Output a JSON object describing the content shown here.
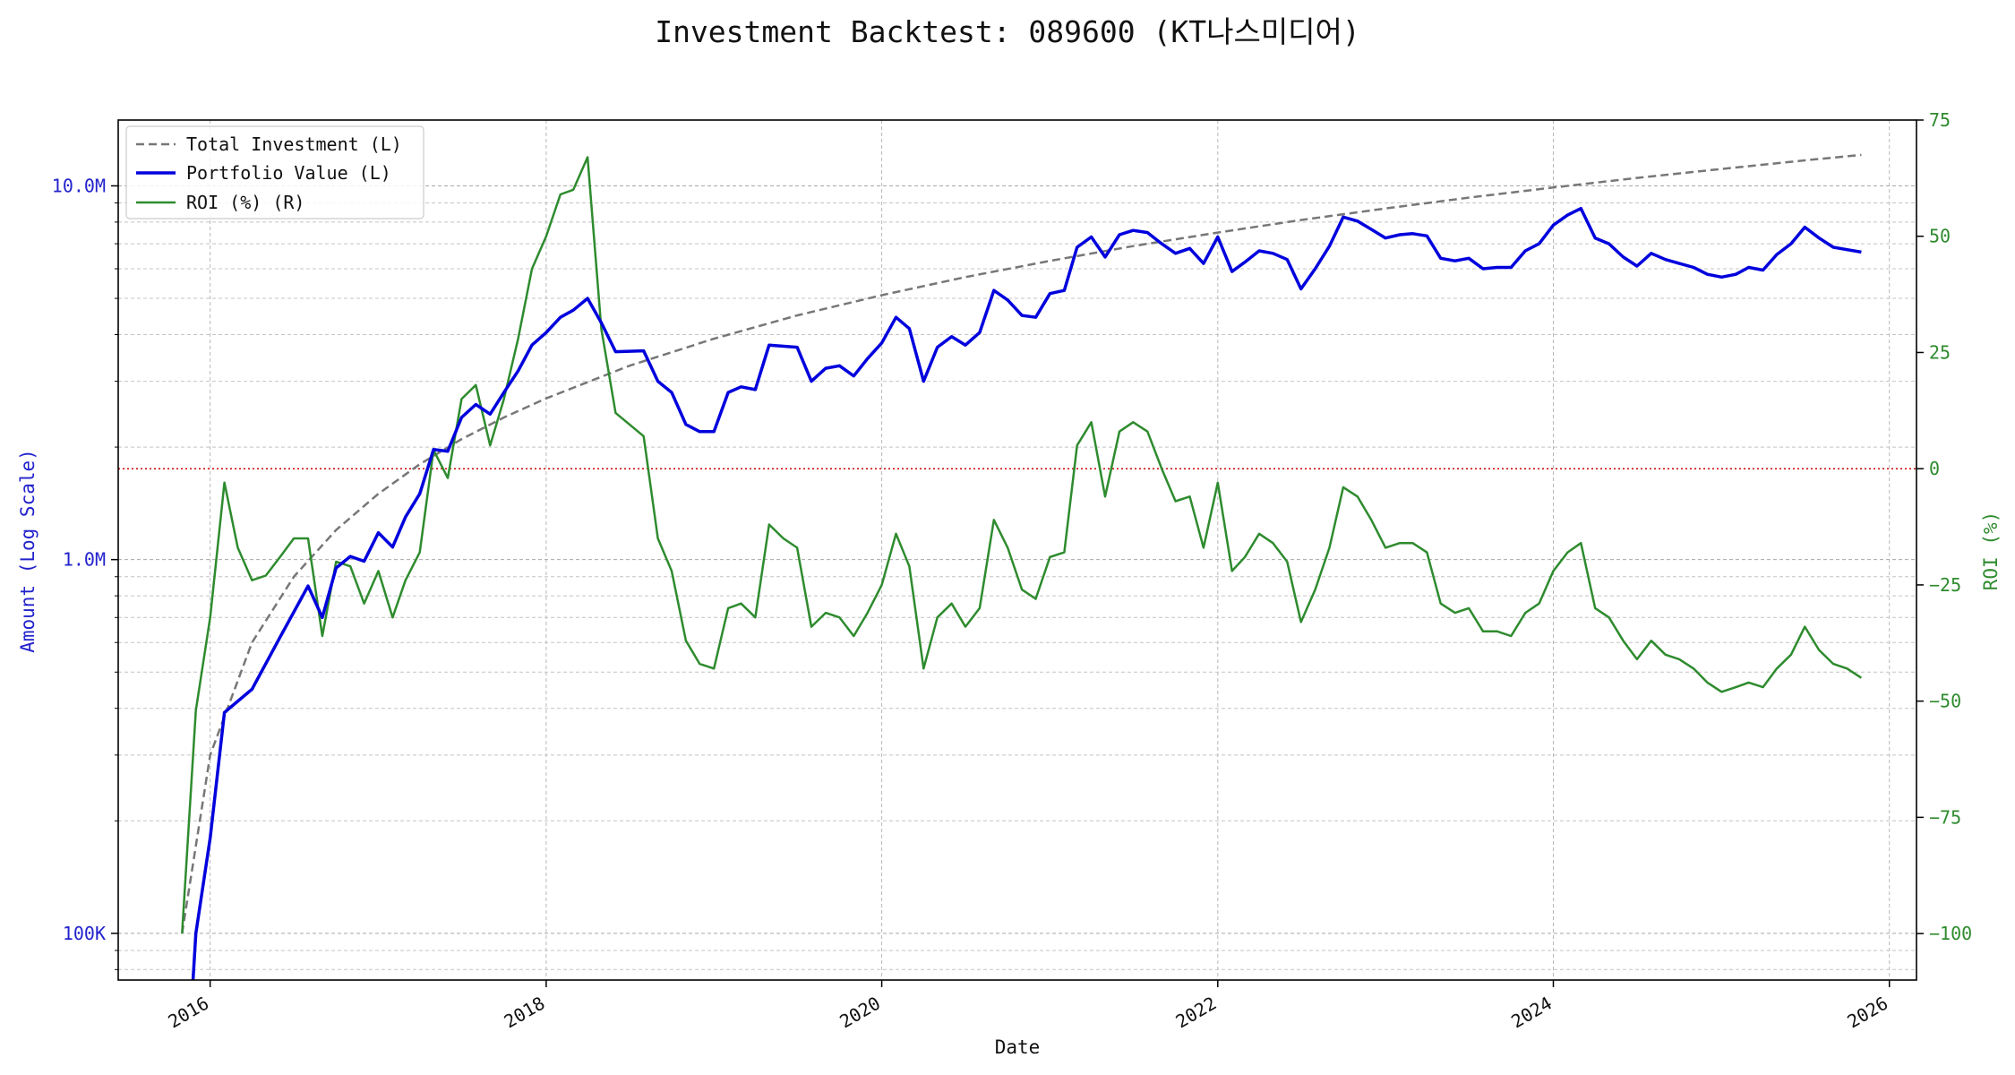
{
  "chart_data": {
    "type": "line",
    "title": "Investment Backtest: 089600 (KT나스미디어)",
    "xlabel": "Date",
    "ylabel_left": "Amount (Log Scale)",
    "ylabel_right": "ROI (%)",
    "left_scale": "log",
    "left_ylim": [
      75000,
      15000000
    ],
    "right_ylim": [
      -110,
      75
    ],
    "xlim": [
      "2015-06-15",
      "2026-03-01"
    ],
    "x_ticks": [
      "2016",
      "2018",
      "2020",
      "2022",
      "2024",
      "2026"
    ],
    "left_ticks": [
      {
        "value": 100000,
        "label": "100K"
      },
      {
        "value": 1000000,
        "label": "1.0M"
      },
      {
        "value": 10000000,
        "label": "10.0M"
      }
    ],
    "right_ticks": [
      {
        "value": 75,
        "label": "75"
      },
      {
        "value": 50,
        "label": "50"
      },
      {
        "value": 25,
        "label": "25"
      },
      {
        "value": 0,
        "label": "0"
      },
      {
        "value": -25,
        "label": "−25"
      },
      {
        "value": -50,
        "label": "−50"
      },
      {
        "value": -75,
        "label": "−75"
      },
      {
        "value": -100,
        "label": "−100"
      }
    ],
    "grid": true,
    "legend": "upper-left",
    "reference_line": {
      "axis": "right",
      "value": 0,
      "color": "#cc0000",
      "style": "dotted"
    },
    "series": [
      {
        "name": "Total Investment (L)",
        "axis": "left",
        "color": "#777777",
        "style": "dashed",
        "points": [
          [
            "2015-11-01",
            100000
          ],
          [
            "2016-01-01",
            300000
          ],
          [
            "2016-04-01",
            600000
          ],
          [
            "2016-07-01",
            900000
          ],
          [
            "2016-10-01",
            1200000
          ],
          [
            "2017-01-01",
            1500000
          ],
          [
            "2017-04-01",
            1800000
          ],
          [
            "2017-07-01",
            2100000
          ],
          [
            "2017-10-01",
            2400000
          ],
          [
            "2018-01-01",
            2700000
          ],
          [
            "2018-07-01",
            3300000
          ],
          [
            "2019-01-01",
            3900000
          ],
          [
            "2019-07-01",
            4500000
          ],
          [
            "2020-01-01",
            5100000
          ],
          [
            "2020-07-01",
            5700000
          ],
          [
            "2021-01-01",
            6300000
          ],
          [
            "2021-07-01",
            6900000
          ],
          [
            "2022-01-01",
            7500000
          ],
          [
            "2022-07-01",
            8100000
          ],
          [
            "2023-01-01",
            8700000
          ],
          [
            "2023-07-01",
            9300000
          ],
          [
            "2024-01-01",
            9900000
          ],
          [
            "2024-07-01",
            10500000
          ],
          [
            "2025-01-01",
            11100000
          ],
          [
            "2025-07-01",
            11700000
          ],
          [
            "2025-11-01",
            12100000
          ]
        ]
      },
      {
        "name": "Portfolio Value (L)",
        "axis": "left",
        "color": "#0000dd",
        "style": "solid",
        "points": [
          [
            "2015-11-20",
            60000
          ],
          [
            "2015-12-01",
            100000
          ],
          [
            "2016-01-01",
            180000
          ],
          [
            "2016-02-01",
            390000
          ],
          [
            "2016-04-01",
            450000
          ],
          [
            "2016-06-01",
            620000
          ],
          [
            "2016-08-01",
            850000
          ],
          [
            "2016-09-01",
            700000
          ],
          [
            "2016-10-01",
            950000
          ],
          [
            "2016-11-01",
            1020000
          ],
          [
            "2016-12-01",
            990000
          ],
          [
            "2017-01-01",
            1180000
          ],
          [
            "2017-02-01",
            1080000
          ],
          [
            "2017-03-01",
            1300000
          ],
          [
            "2017-04-01",
            1500000
          ],
          [
            "2017-05-01",
            1970000
          ],
          [
            "2017-06-01",
            1950000
          ],
          [
            "2017-07-01",
            2400000
          ],
          [
            "2017-08-01",
            2600000
          ],
          [
            "2017-09-01",
            2450000
          ],
          [
            "2017-10-01",
            2800000
          ],
          [
            "2017-11-01",
            3200000
          ],
          [
            "2017-12-01",
            3750000
          ],
          [
            "2018-01-01",
            4050000
          ],
          [
            "2018-02-01",
            4450000
          ],
          [
            "2018-03-01",
            4650000
          ],
          [
            "2018-04-01",
            5000000
          ],
          [
            "2018-05-01",
            4300000
          ],
          [
            "2018-06-01",
            3600000
          ],
          [
            "2018-08-01",
            3620000
          ],
          [
            "2018-09-01",
            3000000
          ],
          [
            "2018-10-01",
            2800000
          ],
          [
            "2018-11-01",
            2300000
          ],
          [
            "2018-12-01",
            2200000
          ],
          [
            "2019-01-01",
            2200000
          ],
          [
            "2019-02-01",
            2800000
          ],
          [
            "2019-03-01",
            2900000
          ],
          [
            "2019-04-01",
            2850000
          ],
          [
            "2019-05-01",
            3750000
          ],
          [
            "2019-07-01",
            3700000
          ],
          [
            "2019-08-01",
            3000000
          ],
          [
            "2019-09-01",
            3250000
          ],
          [
            "2019-10-01",
            3300000
          ],
          [
            "2019-11-01",
            3100000
          ],
          [
            "2019-12-01",
            3450000
          ],
          [
            "2020-01-01",
            3800000
          ],
          [
            "2020-02-01",
            4450000
          ],
          [
            "2020-03-01",
            4150000
          ],
          [
            "2020-04-01",
            3000000
          ],
          [
            "2020-05-01",
            3700000
          ],
          [
            "2020-06-01",
            3950000
          ],
          [
            "2020-07-01",
            3750000
          ],
          [
            "2020-08-01",
            4050000
          ],
          [
            "2020-09-01",
            5250000
          ],
          [
            "2020-10-01",
            4950000
          ],
          [
            "2020-11-01",
            4500000
          ],
          [
            "2020-12-01",
            4450000
          ],
          [
            "2021-01-01",
            5150000
          ],
          [
            "2021-02-01",
            5250000
          ],
          [
            "2021-03-01",
            6850000
          ],
          [
            "2021-04-01",
            7300000
          ],
          [
            "2021-05-01",
            6450000
          ],
          [
            "2021-06-01",
            7400000
          ],
          [
            "2021-07-01",
            7600000
          ],
          [
            "2021-08-01",
            7500000
          ],
          [
            "2021-09-01",
            7000000
          ],
          [
            "2021-10-01",
            6600000
          ],
          [
            "2021-11-01",
            6800000
          ],
          [
            "2021-12-01",
            6200000
          ],
          [
            "2022-01-01",
            7300000
          ],
          [
            "2022-02-01",
            5900000
          ],
          [
            "2022-03-01",
            6250000
          ],
          [
            "2022-04-01",
            6700000
          ],
          [
            "2022-05-01",
            6600000
          ],
          [
            "2022-06-01",
            6350000
          ],
          [
            "2022-07-01",
            5300000
          ],
          [
            "2022-08-01",
            6000000
          ],
          [
            "2022-09-01",
            6900000
          ],
          [
            "2022-10-01",
            8250000
          ],
          [
            "2022-11-01",
            8050000
          ],
          [
            "2022-12-01",
            7650000
          ],
          [
            "2023-01-01",
            7250000
          ],
          [
            "2023-02-01",
            7400000
          ],
          [
            "2023-03-01",
            7450000
          ],
          [
            "2023-04-01",
            7350000
          ],
          [
            "2023-05-01",
            6400000
          ],
          [
            "2023-06-01",
            6300000
          ],
          [
            "2023-07-01",
            6400000
          ],
          [
            "2023-08-01",
            6000000
          ],
          [
            "2023-09-01",
            6050000
          ],
          [
            "2023-10-01",
            6050000
          ],
          [
            "2023-11-01",
            6700000
          ],
          [
            "2023-12-01",
            7000000
          ],
          [
            "2024-01-01",
            7850000
          ],
          [
            "2024-02-01",
            8350000
          ],
          [
            "2024-03-01",
            8700000
          ],
          [
            "2024-04-01",
            7250000
          ],
          [
            "2024-05-01",
            7000000
          ],
          [
            "2024-06-01",
            6450000
          ],
          [
            "2024-07-01",
            6100000
          ],
          [
            "2024-08-01",
            6600000
          ],
          [
            "2024-09-01",
            6350000
          ],
          [
            "2024-10-01",
            6200000
          ],
          [
            "2024-11-01",
            6050000
          ],
          [
            "2024-12-01",
            5800000
          ],
          [
            "2025-01-01",
            5700000
          ],
          [
            "2025-02-01",
            5800000
          ],
          [
            "2025-03-01",
            6050000
          ],
          [
            "2025-04-01",
            5950000
          ],
          [
            "2025-05-01",
            6550000
          ],
          [
            "2025-06-01",
            7000000
          ],
          [
            "2025-07-01",
            7750000
          ],
          [
            "2025-08-01",
            7250000
          ],
          [
            "2025-09-01",
            6850000
          ],
          [
            "2025-10-01",
            6750000
          ],
          [
            "2025-11-01",
            6650000
          ]
        ]
      },
      {
        "name": "ROI (%) (R)",
        "axis": "right",
        "color": "#2e8b2e",
        "style": "solid",
        "points": [
          [
            "2015-11-01",
            -100
          ],
          [
            "2015-12-01",
            -52
          ],
          [
            "2016-01-01",
            -32
          ],
          [
            "2016-02-01",
            -3
          ],
          [
            "2016-03-01",
            -17
          ],
          [
            "2016-04-01",
            -24
          ],
          [
            "2016-05-01",
            -23
          ],
          [
            "2016-06-01",
            -19
          ],
          [
            "2016-07-01",
            -15
          ],
          [
            "2016-08-01",
            -15
          ],
          [
            "2016-09-01",
            -36
          ],
          [
            "2016-10-01",
            -20
          ],
          [
            "2016-11-01",
            -21
          ],
          [
            "2016-12-01",
            -29
          ],
          [
            "2017-01-01",
            -22
          ],
          [
            "2017-02-01",
            -32
          ],
          [
            "2017-03-01",
            -24
          ],
          [
            "2017-04-01",
            -18
          ],
          [
            "2017-05-01",
            4
          ],
          [
            "2017-06-01",
            -2
          ],
          [
            "2017-07-01",
            15
          ],
          [
            "2017-08-01",
            18
          ],
          [
            "2017-09-01",
            5
          ],
          [
            "2017-10-01",
            15
          ],
          [
            "2017-11-01",
            28
          ],
          [
            "2017-12-01",
            43
          ],
          [
            "2018-01-01",
            50
          ],
          [
            "2018-02-01",
            59
          ],
          [
            "2018-03-01",
            60
          ],
          [
            "2018-04-01",
            67
          ],
          [
            "2018-05-01",
            30
          ],
          [
            "2018-06-01",
            12
          ],
          [
            "2018-08-01",
            7
          ],
          [
            "2018-09-01",
            -15
          ],
          [
            "2018-10-01",
            -22
          ],
          [
            "2018-11-01",
            -37
          ],
          [
            "2018-12-01",
            -42
          ],
          [
            "2019-01-01",
            -43
          ],
          [
            "2019-02-01",
            -30
          ],
          [
            "2019-03-01",
            -29
          ],
          [
            "2019-04-01",
            -32
          ],
          [
            "2019-05-01",
            -12
          ],
          [
            "2019-06-01",
            -15
          ],
          [
            "2019-07-01",
            -17
          ],
          [
            "2019-08-01",
            -34
          ],
          [
            "2019-09-01",
            -31
          ],
          [
            "2019-10-01",
            -32
          ],
          [
            "2019-11-01",
            -36
          ],
          [
            "2019-12-01",
            -31
          ],
          [
            "2020-01-01",
            -25
          ],
          [
            "2020-02-01",
            -14
          ],
          [
            "2020-03-01",
            -21
          ],
          [
            "2020-04-01",
            -43
          ],
          [
            "2020-05-01",
            -32
          ],
          [
            "2020-06-01",
            -29
          ],
          [
            "2020-07-01",
            -34
          ],
          [
            "2020-08-01",
            -30
          ],
          [
            "2020-09-01",
            -11
          ],
          [
            "2020-10-01",
            -17
          ],
          [
            "2020-11-01",
            -26
          ],
          [
            "2020-12-01",
            -28
          ],
          [
            "2021-01-01",
            -19
          ],
          [
            "2021-02-01",
            -18
          ],
          [
            "2021-03-01",
            5
          ],
          [
            "2021-04-01",
            10
          ],
          [
            "2021-05-01",
            -6
          ],
          [
            "2021-06-01",
            8
          ],
          [
            "2021-07-01",
            10
          ],
          [
            "2021-08-01",
            8
          ],
          [
            "2021-09-01",
            0
          ],
          [
            "2021-10-01",
            -7
          ],
          [
            "2021-11-01",
            -6
          ],
          [
            "2021-12-01",
            -17
          ],
          [
            "2022-01-01",
            -3
          ],
          [
            "2022-02-01",
            -22
          ],
          [
            "2022-03-01",
            -19
          ],
          [
            "2022-04-01",
            -14
          ],
          [
            "2022-05-01",
            -16
          ],
          [
            "2022-06-01",
            -20
          ],
          [
            "2022-07-01",
            -33
          ],
          [
            "2022-08-01",
            -26
          ],
          [
            "2022-09-01",
            -17
          ],
          [
            "2022-10-01",
            -4
          ],
          [
            "2022-11-01",
            -6
          ],
          [
            "2022-12-01",
            -11
          ],
          [
            "2023-01-01",
            -17
          ],
          [
            "2023-02-01",
            -16
          ],
          [
            "2023-03-01",
            -16
          ],
          [
            "2023-04-01",
            -18
          ],
          [
            "2023-05-01",
            -29
          ],
          [
            "2023-06-01",
            -31
          ],
          [
            "2023-07-01",
            -30
          ],
          [
            "2023-08-01",
            -35
          ],
          [
            "2023-09-01",
            -35
          ],
          [
            "2023-10-01",
            -36
          ],
          [
            "2023-11-01",
            -31
          ],
          [
            "2023-12-01",
            -29
          ],
          [
            "2024-01-01",
            -22
          ],
          [
            "2024-02-01",
            -18
          ],
          [
            "2024-03-01",
            -16
          ],
          [
            "2024-04-01",
            -30
          ],
          [
            "2024-05-01",
            -32
          ],
          [
            "2024-06-01",
            -37
          ],
          [
            "2024-07-01",
            -41
          ],
          [
            "2024-08-01",
            -37
          ],
          [
            "2024-09-01",
            -40
          ],
          [
            "2024-10-01",
            -41
          ],
          [
            "2024-11-01",
            -43
          ],
          [
            "2024-12-01",
            -46
          ],
          [
            "2025-01-01",
            -48
          ],
          [
            "2025-02-01",
            -47
          ],
          [
            "2025-03-01",
            -46
          ],
          [
            "2025-04-01",
            -47
          ],
          [
            "2025-05-01",
            -43
          ],
          [
            "2025-06-01",
            -40
          ],
          [
            "2025-07-01",
            -34
          ],
          [
            "2025-08-01",
            -39
          ],
          [
            "2025-09-01",
            -42
          ],
          [
            "2025-10-01",
            -43
          ],
          [
            "2025-11-01",
            -45
          ]
        ]
      }
    ]
  }
}
